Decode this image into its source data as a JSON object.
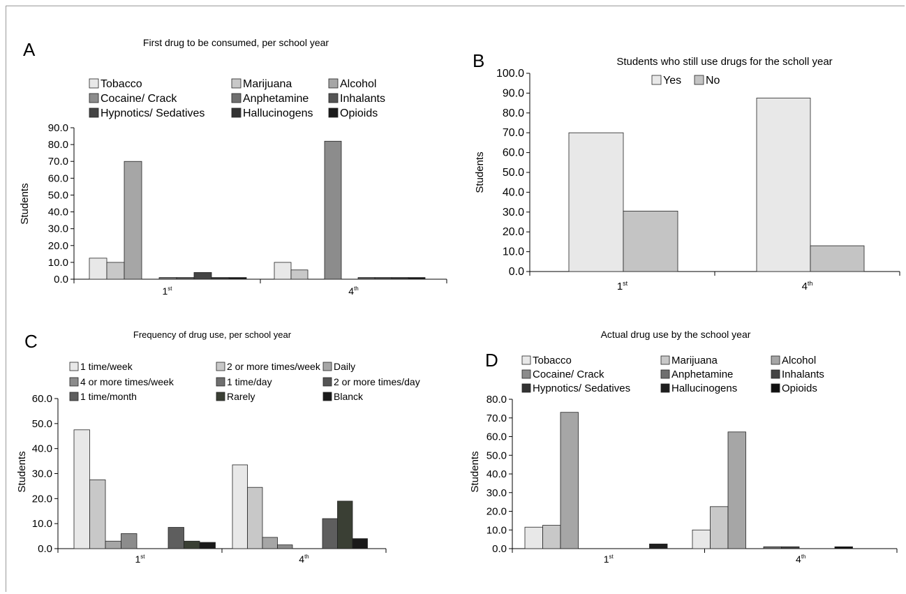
{
  "chart_data": [
    {
      "panel_label": "A",
      "type": "bar",
      "title": "First drug to be consumed, per school year",
      "ylabel": "Students",
      "ylim": [
        0,
        90
      ],
      "yticks": [
        "0.0",
        "10.0",
        "20.0",
        "30.0",
        "40.0",
        "50.0",
        "60.0",
        "70.0",
        "80.0",
        "90.0"
      ],
      "categories": [
        {
          "base": "1",
          "sup": "st"
        },
        {
          "base": "4",
          "sup": "th"
        }
      ],
      "series": [
        {
          "name": "Tobacco",
          "color": "#e8e8e8",
          "values": [
            12.5,
            10.0
          ]
        },
        {
          "name": "Marijuana",
          "color": "#c8c8c8",
          "values": [
            10.0,
            5.5
          ]
        },
        {
          "name": "Alcohol",
          "color": "#a6a6a6",
          "values": [
            70.0,
            0
          ]
        },
        {
          "name": "Cocaine/ Crack",
          "color": "#8c8c8c",
          "values": [
            0,
            82.0
          ]
        },
        {
          "name": "Anphetamine",
          "color": "#6f6f6f",
          "values": [
            1.0,
            0
          ]
        },
        {
          "name": "Inhalants",
          "color": "#555555",
          "values": [
            1.0,
            1.0
          ]
        },
        {
          "name": "Hypnotics/ Sedatives",
          "color": "#444444",
          "values": [
            4.0,
            1.0
          ]
        },
        {
          "name": "Hallucinogens",
          "color": "#333333",
          "values": [
            1.0,
            1.0
          ]
        },
        {
          "name": "Opioids",
          "color": "#1a1a1a",
          "values": [
            1.0,
            1.0
          ]
        }
      ],
      "legend_placement": "top"
    },
    {
      "panel_label": "B",
      "type": "bar",
      "title": "Students who still use drugs for the scholl year",
      "ylabel": "Students",
      "ylim": [
        0,
        100
      ],
      "yticks": [
        "0.0",
        "10.0",
        "20.0",
        "30.0",
        "40.0",
        "50.0",
        "60.0",
        "70.0",
        "80.0",
        "90.0",
        "100.0"
      ],
      "categories": [
        {
          "base": "1",
          "sup": "st"
        },
        {
          "base": "4",
          "sup": "th"
        }
      ],
      "series": [
        {
          "name": "Yes",
          "color": "#e8e8e8",
          "values": [
            70.0,
            87.5
          ]
        },
        {
          "name": "No",
          "color": "#c4c4c4",
          "values": [
            30.5,
            13.0
          ]
        }
      ],
      "legend_placement": "top"
    },
    {
      "panel_label": "C",
      "type": "bar",
      "title": "Frequency of drug use, per school year",
      "ylabel": "Students",
      "ylim": [
        0,
        60
      ],
      "yticks": [
        "0.0",
        "10.0",
        "20.0",
        "30.0",
        "40.0",
        "50.0",
        "60.0"
      ],
      "categories": [
        {
          "base": "1",
          "sup": "st"
        },
        {
          "base": "4",
          "sup": "th"
        }
      ],
      "series": [
        {
          "name": "1 time/week",
          "color": "#e8e8e8",
          "values": [
            47.5,
            33.5
          ]
        },
        {
          "name": "2 or more times/week",
          "color": "#c8c8c8",
          "values": [
            27.5,
            24.5
          ]
        },
        {
          "name": "Daily",
          "color": "#a6a6a6",
          "values": [
            3.0,
            4.5
          ]
        },
        {
          "name": "4 or more times/week",
          "color": "#8c8c8c",
          "values": [
            6.0,
            1.5
          ]
        },
        {
          "name": "1 time/day",
          "color": "#6f6f6f",
          "values": [
            0,
            0
          ]
        },
        {
          "name": "2 or more times/day",
          "color": "#555555",
          "values": [
            0,
            0
          ]
        },
        {
          "name": "1 time/month",
          "color": "#5e5e5e",
          "values": [
            8.5,
            12.0
          ]
        },
        {
          "name": "Rarely",
          "color": "#3a3f34",
          "values": [
            3.0,
            19.0
          ]
        },
        {
          "name": "Blanck",
          "color": "#1a1a1a",
          "values": [
            2.5,
            4.0
          ]
        }
      ],
      "legend_placement": "top"
    },
    {
      "panel_label": "D",
      "type": "bar",
      "title": "Actual drug use by the school year",
      "ylabel": "Students",
      "ylim": [
        0,
        80
      ],
      "yticks": [
        "0.0",
        "10.0",
        "20.0",
        "30.0",
        "40.0",
        "50.0",
        "60.0",
        "70.0",
        "80.0"
      ],
      "categories": [
        {
          "base": "1",
          "sup": "st"
        },
        {
          "base": "4",
          "sup": "th"
        }
      ],
      "series": [
        {
          "name": "Tobacco",
          "color": "#e8e8e8",
          "values": [
            11.5,
            10.0
          ]
        },
        {
          "name": "Marijuana",
          "color": "#c8c8c8",
          "values": [
            12.5,
            22.5
          ]
        },
        {
          "name": "Alcohol",
          "color": "#a6a6a6",
          "values": [
            73.0,
            62.5
          ]
        },
        {
          "name": "Cocaine/ Crack",
          "color": "#8c8c8c",
          "values": [
            0,
            0
          ]
        },
        {
          "name": "Anphetamine",
          "color": "#6f6f6f",
          "values": [
            0,
            1.0
          ]
        },
        {
          "name": "Inhalants",
          "color": "#444444",
          "values": [
            0,
            1.0
          ]
        },
        {
          "name": "Hypnotics/ Sedatives",
          "color": "#333333",
          "values": [
            0,
            0
          ]
        },
        {
          "name": "Hallucinogens",
          "color": "#1f1f1f",
          "values": [
            2.5,
            0
          ]
        },
        {
          "name": "Opioids",
          "color": "#111111",
          "values": [
            0,
            1.0
          ]
        }
      ],
      "legend_placement": "top"
    }
  ]
}
